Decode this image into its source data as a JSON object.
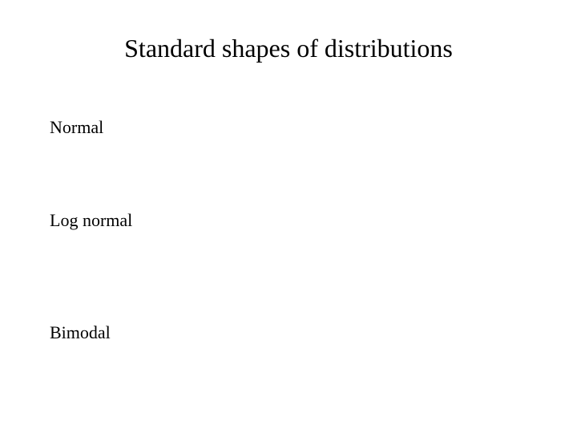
{
  "slide": {
    "title": "Standard shapes of distributions",
    "title_fontsize": 32,
    "title_color": "#000000",
    "background_color": "#ffffff",
    "font_family": "Times New Roman",
    "items": [
      {
        "label": "Normal",
        "fontsize": 22,
        "color": "#000000"
      },
      {
        "label": "Log normal",
        "fontsize": 22,
        "color": "#000000"
      },
      {
        "label": "Bimodal",
        "fontsize": 22,
        "color": "#000000"
      }
    ]
  }
}
